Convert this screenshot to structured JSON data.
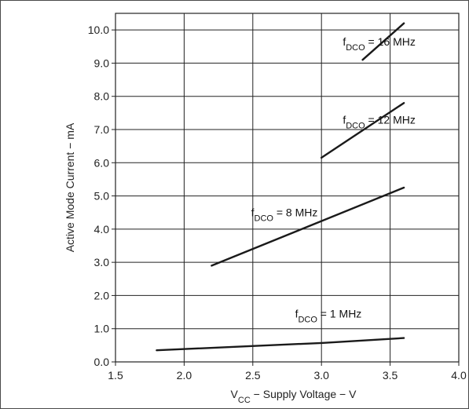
{
  "chart_data": {
    "type": "line",
    "xlabel": {
      "main": "V",
      "sub": "CC",
      "rest": " − Supply Voltage − V"
    },
    "ylabel": "Active Mode Current − mA",
    "xlim": [
      1.5,
      4.0
    ],
    "ylim": [
      0.0,
      10.5
    ],
    "x_ticks": [
      "1.5",
      "2.0",
      "2.5",
      "3.0",
      "3.5",
      "4.0"
    ],
    "y_ticks": [
      "0.0",
      "1.0",
      "2.0",
      "3.0",
      "4.0",
      "5.0",
      "6.0",
      "7.0",
      "8.0",
      "9.0",
      "10.0"
    ],
    "grid": true,
    "series": [
      {
        "points": [
          [
            3.3,
            9.1
          ],
          [
            3.6,
            10.2
          ]
        ]
      },
      {
        "points": [
          [
            3.0,
            6.15
          ],
          [
            3.6,
            7.8
          ]
        ]
      },
      {
        "points": [
          [
            2.2,
            2.9
          ],
          [
            3.6,
            5.25
          ]
        ]
      },
      {
        "points": [
          [
            1.8,
            0.35
          ],
          [
            3.0,
            0.57
          ],
          [
            3.6,
            0.72
          ]
        ]
      }
    ],
    "annotations": [
      {
        "main": "f",
        "sub": "DCO",
        "rest": " = 16 MHz",
        "x": 3.42,
        "y": 9.65
      },
      {
        "main": "f",
        "sub": "DCO",
        "rest": " = 12 MHz",
        "x": 3.42,
        "y": 7.3
      },
      {
        "main": "f",
        "sub": "DCO",
        "rest": " = 8 MHz",
        "x": 2.73,
        "y": 4.5
      },
      {
        "main": "f",
        "sub": "DCO",
        "rest": " = 1 MHz",
        "x": 3.05,
        "y": 1.45
      }
    ]
  }
}
